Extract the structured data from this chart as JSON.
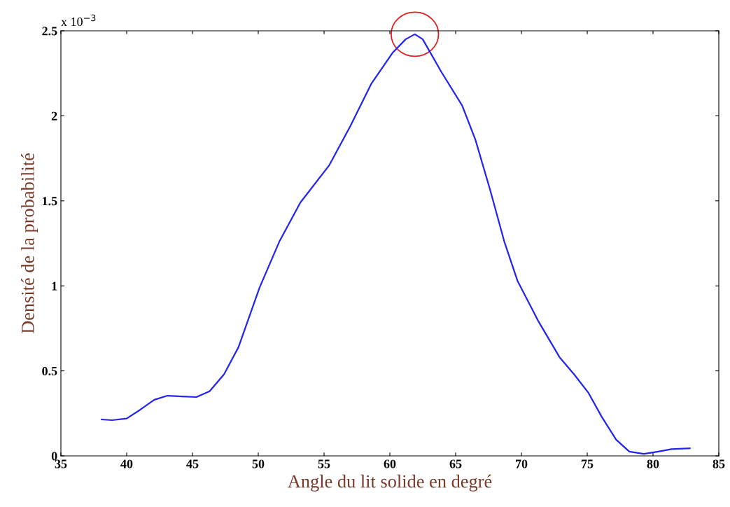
{
  "chart_data": {
    "type": "line",
    "xlabel": "Angle du lit solide en degré",
    "ylabel": "Densité de la probabilité",
    "annotations": [
      "x 10$^{−3}$"
    ],
    "x": [
      38.1,
      38.9,
      40,
      41,
      42.1,
      43.1,
      44.2,
      45.3,
      46.3,
      47.4,
      48.5,
      50.1,
      51.6,
      53.2,
      55.4,
      57,
      58.6,
      60.2,
      61.2,
      61.9,
      62.5,
      63.9,
      65.5,
      66.5,
      67.6,
      68.7,
      69.7,
      71.3,
      72.9,
      74,
      75.1,
      76.1,
      77.2,
      78.2,
      79.3,
      80.4,
      81.4,
      82.8
    ],
    "series": [
      {
        "color": "#2323f0",
        "values": [
          0.214,
          0.21,
          0.22,
          0.27,
          0.33,
          0.354,
          0.35,
          0.346,
          0.38,
          0.48,
          0.64,
          0.99,
          1.26,
          1.49,
          1.71,
          1.94,
          2.19,
          2.37,
          2.45,
          2.48,
          2.45,
          2.26,
          2.06,
          1.86,
          1.57,
          1.26,
          1.03,
          0.79,
          0.58,
          0.48,
          0.37,
          0.23,
          0.095,
          0.025,
          0.012,
          0.025,
          0.04,
          0.045
        ]
      }
    ],
    "xlim": [
      35,
      85
    ],
    "xticks": [
      35,
      40,
      45,
      50,
      55,
      60,
      65,
      70,
      75,
      80,
      85
    ],
    "ylim": [
      0,
      2.5
    ],
    "yticks": [
      0,
      0.5,
      1,
      1.5,
      2,
      2.5
    ],
    "grid": false,
    "legend": false,
    "marker": "none",
    "line_style": "solid"
  }
}
